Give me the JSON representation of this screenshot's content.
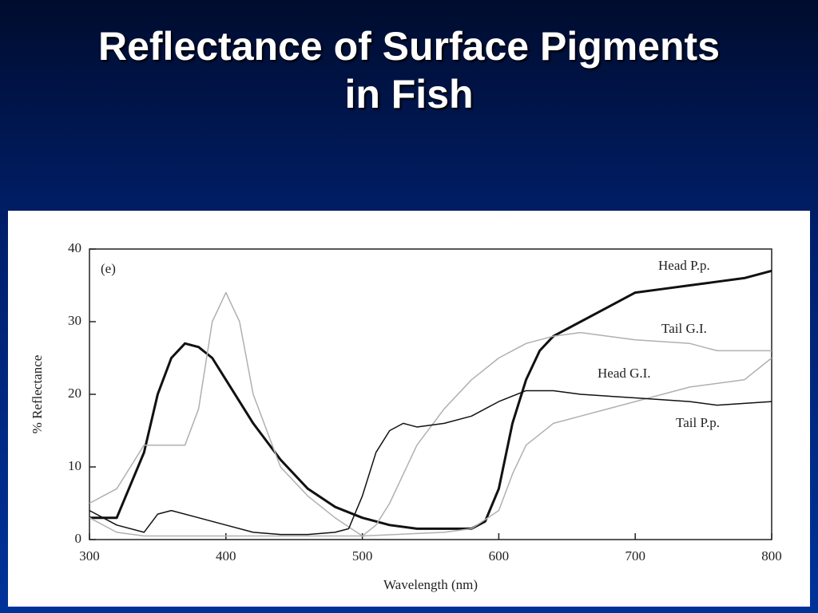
{
  "chart_data": {
    "type": "line",
    "title": "Reflectance of Surface Pigments in Fish",
    "panel_label": "(e)",
    "x_label": "Wavelength (nm)",
    "y_label": "% Reflectance",
    "xlim": [
      300,
      800
    ],
    "ylim": [
      0,
      40
    ],
    "xticks": [
      300,
      400,
      500,
      600,
      700,
      800
    ],
    "yticks": [
      0,
      10,
      20,
      30,
      40
    ],
    "legend": "inline",
    "series": [
      {
        "name": "Head P.p.",
        "color": "#111111",
        "line_width": 3,
        "x": [
          300,
          320,
          340,
          350,
          360,
          370,
          380,
          390,
          400,
          420,
          440,
          460,
          480,
          500,
          520,
          540,
          560,
          580,
          590,
          600,
          610,
          620,
          630,
          640,
          660,
          680,
          700,
          720,
          740,
          760,
          780,
          800
        ],
        "values": [
          3,
          3,
          12,
          20,
          25,
          27,
          26.5,
          25,
          22,
          16,
          11,
          7,
          4.5,
          3,
          2,
          1.5,
          1.5,
          1.5,
          2.5,
          7,
          16,
          22,
          26,
          28,
          30,
          32,
          34,
          34.5,
          35,
          35.5,
          36,
          37
        ]
      },
      {
        "name": "Tail G.I.",
        "color": "#b0b0b0",
        "line_width": 1.5,
        "x": [
          300,
          320,
          330,
          340,
          360,
          370,
          380,
          390,
          400,
          410,
          420,
          440,
          460,
          480,
          500,
          510,
          520,
          530,
          540,
          560,
          580,
          600,
          620,
          640,
          660,
          680,
          700,
          740,
          760,
          800
        ],
        "values": [
          5,
          7,
          10,
          13,
          13,
          13,
          18,
          30,
          34,
          30,
          20,
          10,
          6,
          3,
          0.5,
          2,
          5,
          9,
          13,
          18,
          22,
          25,
          27,
          28,
          28.5,
          28,
          27.5,
          27,
          26,
          26
        ]
      },
      {
        "name": "Head G.I.",
        "color": "#b0b0b0",
        "line_width": 1.5,
        "x": [
          300,
          320,
          340,
          400,
          500,
          560,
          580,
          600,
          610,
          620,
          640,
          660,
          700,
          740,
          780,
          800
        ],
        "values": [
          3,
          1,
          0.5,
          0.5,
          0.5,
          1,
          1.5,
          4,
          9,
          13,
          16,
          17,
          19,
          21,
          22,
          25
        ]
      },
      {
        "name": "Tail P.p.",
        "color": "#111111",
        "line_width": 1.5,
        "x": [
          300,
          320,
          340,
          350,
          360,
          380,
          400,
          420,
          440,
          460,
          480,
          490,
          500,
          510,
          520,
          530,
          540,
          560,
          580,
          600,
          620,
          640,
          660,
          700,
          740,
          760,
          800
        ],
        "values": [
          4,
          2,
          1,
          3.5,
          4,
          3,
          2,
          1,
          0.7,
          0.7,
          1,
          1.5,
          6,
          12,
          15,
          16,
          15.5,
          16,
          17,
          19,
          20.5,
          20.5,
          20,
          19.5,
          19,
          18.5,
          19
        ]
      }
    ]
  }
}
